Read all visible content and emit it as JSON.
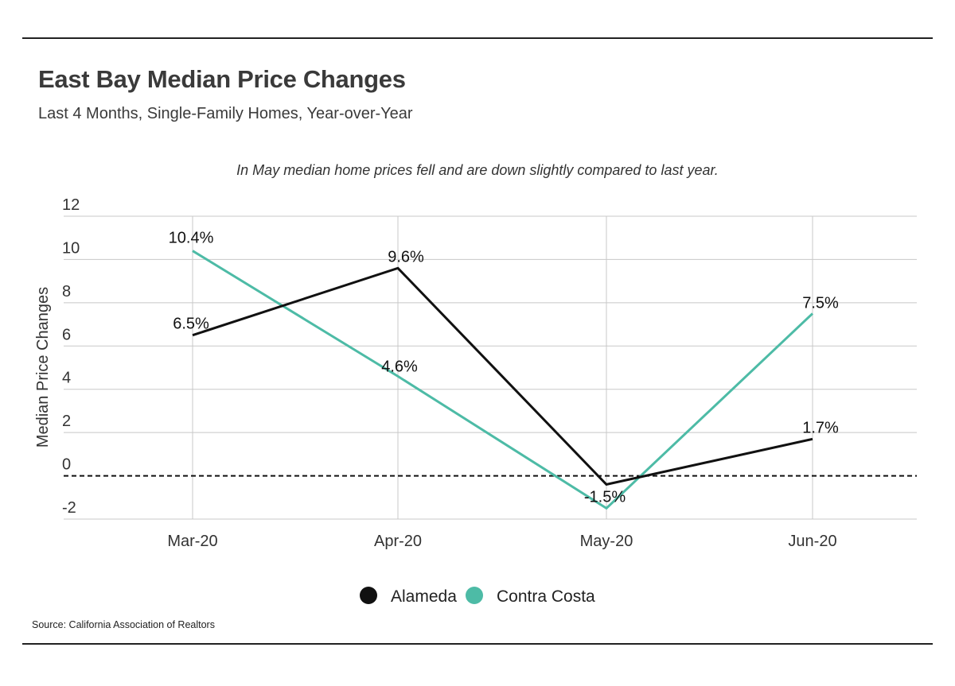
{
  "header": {
    "title": "East Bay Median Price Changes",
    "subtitle": "Last 4 Months, Single-Family Homes, Year-over-Year"
  },
  "footer": {
    "source": "Source:  California Association of Realtors"
  },
  "colors": {
    "alameda": "#111111",
    "contra_costa": "#4dbba6",
    "grid": "#c8c8c8",
    "zero_line": "#111111"
  },
  "chart_data": {
    "type": "line",
    "title": "",
    "annotation": "In May median home prices fell and are down slightly compared to last year.",
    "xlabel": "",
    "ylabel": "Median Price Changes",
    "categories": [
      "Mar-20",
      "Apr-20",
      "May-20",
      "Jun-20"
    ],
    "ylim": [
      -2,
      12
    ],
    "yticks": [
      -2,
      0,
      2,
      4,
      6,
      8,
      10,
      12
    ],
    "grid": true,
    "zero_line": "dashed",
    "legend_position": "bottom",
    "series": [
      {
        "name": "Alameda",
        "color": "#111111",
        "values": [
          6.5,
          9.6,
          -0.4,
          1.7
        ],
        "labels": [
          "6.5%",
          "9.6%",
          "",
          "1.7%"
        ]
      },
      {
        "name": "Contra Costa",
        "color": "#4dbba6",
        "values": [
          10.4,
          4.6,
          -1.5,
          7.5
        ],
        "labels": [
          "10.4%",
          "4.6%",
          "-1.5%",
          "7.5%"
        ]
      }
    ]
  }
}
